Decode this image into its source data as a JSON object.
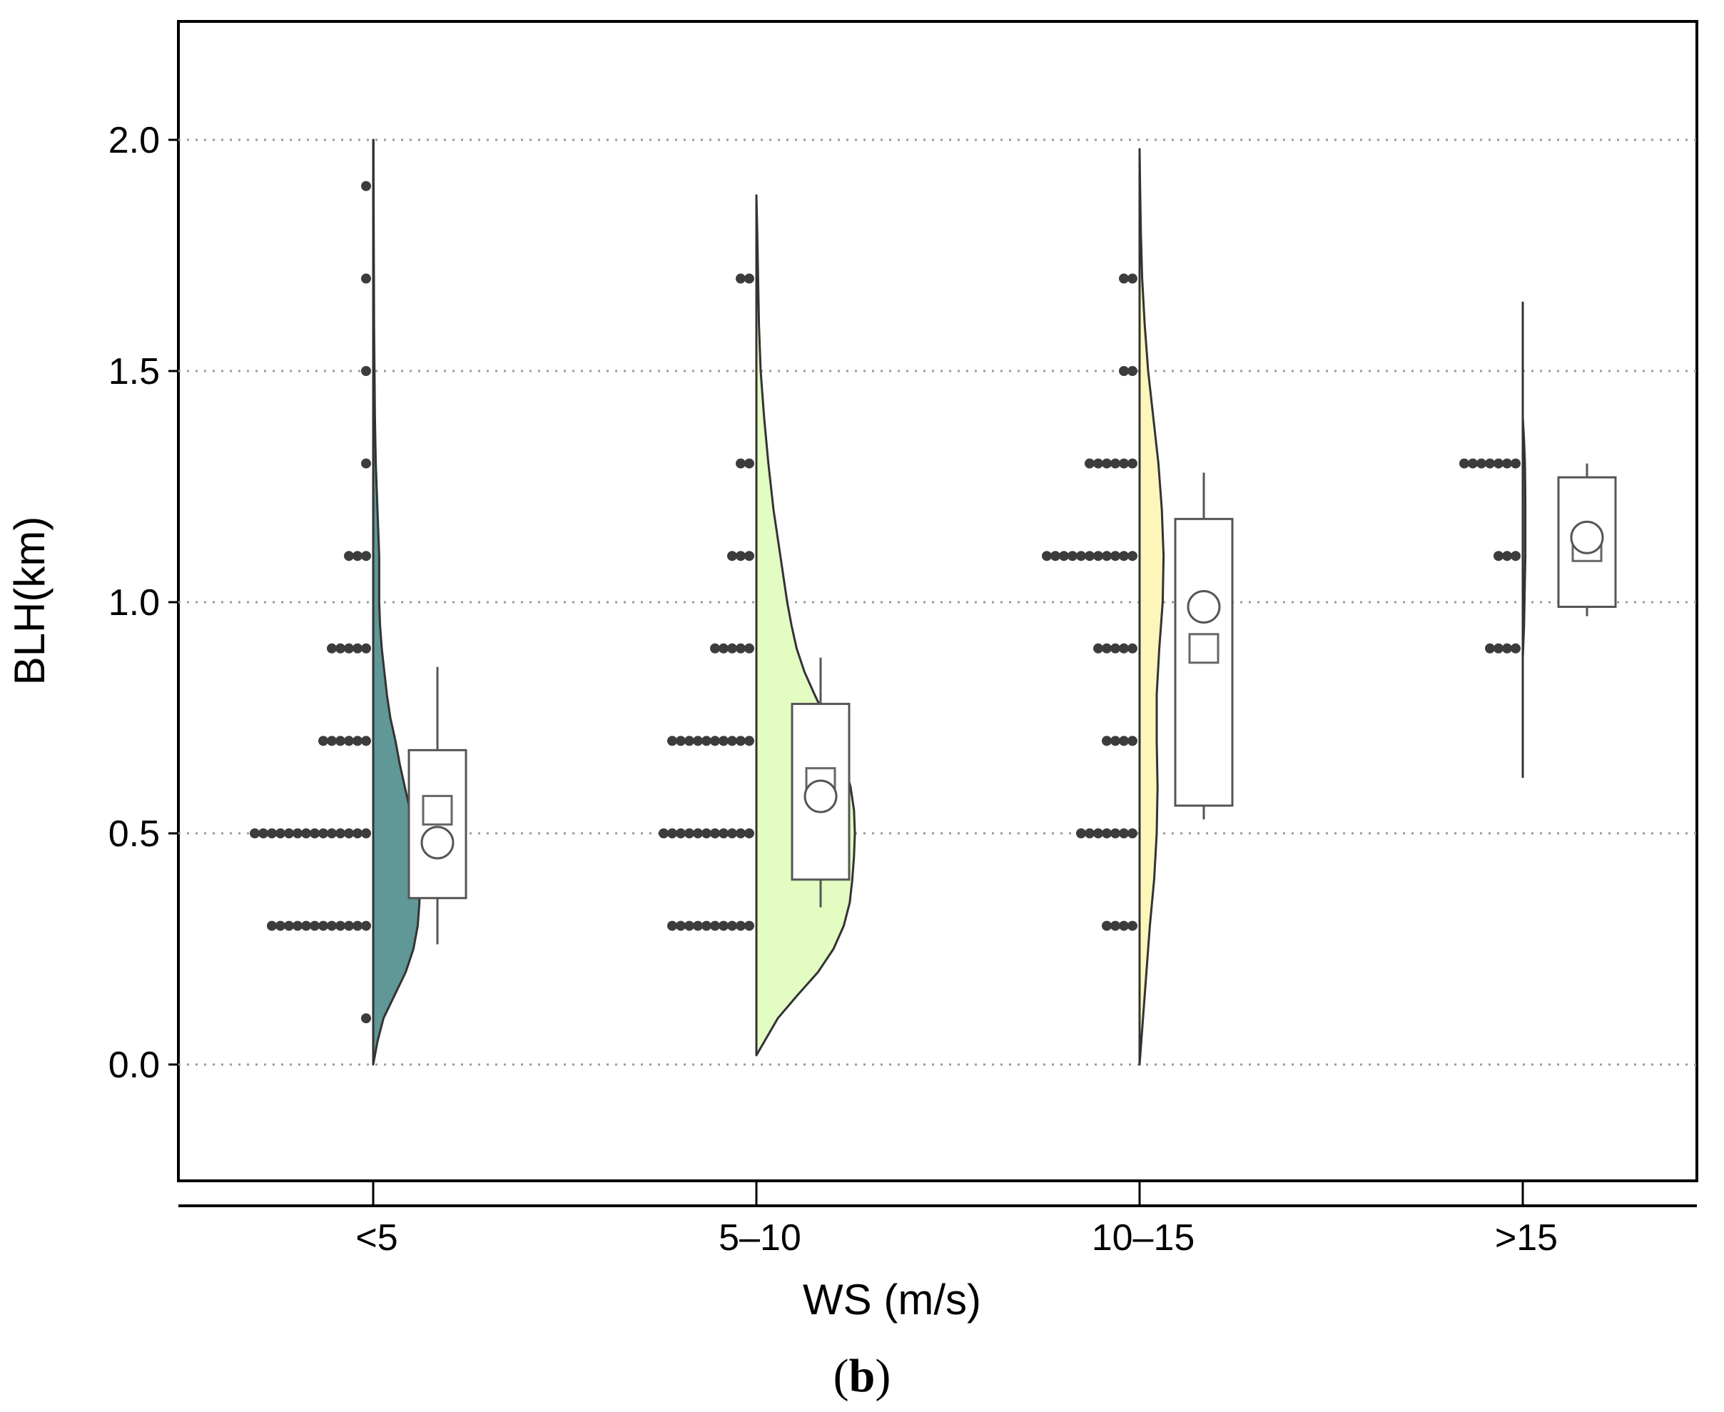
{
  "colors": {
    "background": "#ffffff",
    "frame": "#000000",
    "grid": "#9a9a9a",
    "points": "#3c3c3c",
    "violin_stroke": "#333333"
  },
  "chart_data": {
    "type": "raincloud",
    "title": "",
    "xlabel": "WS (m/s)",
    "ylabel": "BLH(km)",
    "panel_label": {
      "open": "(",
      "letter": "b",
      "close": ")"
    },
    "ylim": [
      -0.25,
      2.25
    ],
    "yticks": [
      "0.0",
      "0.5",
      "1.0",
      "1.5",
      "2.0"
    ],
    "grid": "horizontal-dotted",
    "categories": [
      "<5",
      "5–10",
      "10–15",
      ">15"
    ],
    "series": [
      {
        "name": "<5",
        "color": "#5f9896",
        "violin": {
          "y": [
            0.0,
            0.05,
            0.1,
            0.15,
            0.2,
            0.25,
            0.3,
            0.35,
            0.4,
            0.45,
            0.5,
            0.55,
            0.6,
            0.65,
            0.7,
            0.75,
            0.8,
            0.85,
            0.9,
            0.95,
            1.0,
            1.05,
            1.1,
            1.15,
            1.2,
            1.25,
            1.3,
            1.4,
            1.5,
            1.6,
            1.7,
            1.8,
            1.9,
            2.0
          ],
          "width": [
            0.0,
            0.05,
            0.12,
            0.25,
            0.38,
            0.47,
            0.52,
            0.54,
            0.54,
            0.52,
            0.48,
            0.43,
            0.37,
            0.31,
            0.26,
            0.2,
            0.16,
            0.13,
            0.1,
            0.08,
            0.07,
            0.07,
            0.07,
            0.06,
            0.05,
            0.04,
            0.03,
            0.02,
            0.015,
            0.01,
            0.008,
            0.006,
            0.004,
            0.003
          ]
        },
        "box": {
          "whisker_low": 0.26,
          "q1": 0.36,
          "median": 0.55,
          "q3": 0.68,
          "whisker_high": 0.86,
          "mean": 0.48
        },
        "points": [
          {
            "y": 0.1,
            "count": 1
          },
          {
            "y": 0.3,
            "count": 12
          },
          {
            "y": 0.5,
            "count": 14
          },
          {
            "y": 0.7,
            "count": 6
          },
          {
            "y": 0.9,
            "count": 5
          },
          {
            "y": 1.1,
            "count": 3
          },
          {
            "y": 1.3,
            "count": 1
          },
          {
            "y": 1.5,
            "count": 1
          },
          {
            "y": 1.7,
            "count": 1
          },
          {
            "y": 1.9,
            "count": 1
          }
        ]
      },
      {
        "name": "5–10",
        "color": "#e3fcc2",
        "violin": {
          "y": [
            0.02,
            0.1,
            0.15,
            0.2,
            0.25,
            0.3,
            0.35,
            0.4,
            0.45,
            0.5,
            0.55,
            0.6,
            0.65,
            0.7,
            0.75,
            0.8,
            0.85,
            0.9,
            0.95,
            1.0,
            1.05,
            1.1,
            1.15,
            1.2,
            1.3,
            1.4,
            1.5,
            1.6,
            1.7,
            1.8,
            1.88
          ],
          "width": [
            0.0,
            0.25,
            0.48,
            0.72,
            0.9,
            1.02,
            1.09,
            1.12,
            1.14,
            1.15,
            1.14,
            1.1,
            1.03,
            0.93,
            0.81,
            0.68,
            0.56,
            0.47,
            0.41,
            0.36,
            0.32,
            0.28,
            0.24,
            0.2,
            0.14,
            0.09,
            0.05,
            0.03,
            0.02,
            0.01,
            0.0
          ]
        },
        "box": {
          "whisker_low": 0.34,
          "q1": 0.4,
          "median": 0.61,
          "q3": 0.78,
          "whisker_high": 0.88,
          "mean": 0.58
        },
        "points": [
          {
            "y": 0.3,
            "count": 10
          },
          {
            "y": 0.5,
            "count": 11
          },
          {
            "y": 0.7,
            "count": 10
          },
          {
            "y": 0.9,
            "count": 5
          },
          {
            "y": 1.1,
            "count": 3
          },
          {
            "y": 1.3,
            "count": 2
          },
          {
            "y": 1.7,
            "count": 2
          }
        ]
      },
      {
        "name": "10–15",
        "color": "#fdf6bb",
        "violin": {
          "y": [
            0.0,
            0.1,
            0.2,
            0.3,
            0.4,
            0.5,
            0.6,
            0.7,
            0.8,
            0.9,
            1.0,
            1.1,
            1.2,
            1.3,
            1.4,
            1.5,
            1.6,
            1.7,
            1.8,
            1.9,
            1.98
          ],
          "width": [
            0.0,
            0.04,
            0.08,
            0.12,
            0.17,
            0.2,
            0.21,
            0.2,
            0.2,
            0.23,
            0.27,
            0.28,
            0.26,
            0.22,
            0.16,
            0.1,
            0.06,
            0.03,
            0.015,
            0.006,
            0.0
          ]
        },
        "box": {
          "whisker_low": 0.53,
          "q1": 0.56,
          "median": 0.9,
          "q3": 1.18,
          "whisker_high": 1.28,
          "mean": 0.99
        },
        "points": [
          {
            "y": 0.3,
            "count": 4
          },
          {
            "y": 0.5,
            "count": 7
          },
          {
            "y": 0.7,
            "count": 4
          },
          {
            "y": 0.9,
            "count": 5
          },
          {
            "y": 1.1,
            "count": 11
          },
          {
            "y": 1.3,
            "count": 6
          },
          {
            "y": 1.5,
            "count": 2
          },
          {
            "y": 1.7,
            "count": 2
          }
        ]
      },
      {
        "name": ">15",
        "color": "#6f8fa5",
        "violin": {
          "y": [
            0.88,
            0.95,
            1.0,
            1.05,
            1.1,
            1.15,
            1.2,
            1.25,
            1.3,
            1.35,
            1.4
          ],
          "width": [
            0.0,
            0.015,
            0.02,
            0.025,
            0.03,
            0.03,
            0.03,
            0.028,
            0.025,
            0.015,
            0.0
          ]
        },
        "violin_line": [
          0.62,
          1.65
        ],
        "box": {
          "whisker_low": 0.97,
          "q1": 0.99,
          "median": 1.12,
          "q3": 1.27,
          "whisker_high": 1.3,
          "mean": 1.14
        },
        "points": [
          {
            "y": 0.9,
            "count": 4
          },
          {
            "y": 1.1,
            "count": 3
          },
          {
            "y": 1.3,
            "count": 7
          }
        ]
      }
    ]
  }
}
